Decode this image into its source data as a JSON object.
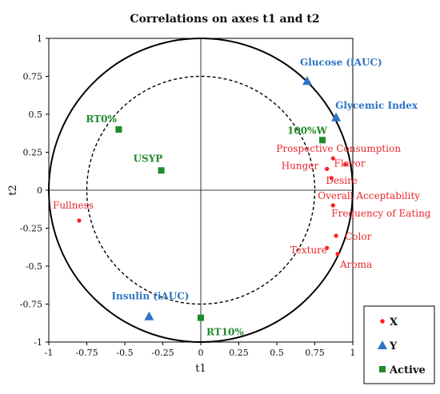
{
  "chart_data": {
    "type": "scatter",
    "title": "Correlations on axes t1 and t2",
    "xlabel": "t1",
    "ylabel": "t2",
    "xlim": [
      -1,
      1
    ],
    "ylim": [
      -1,
      1
    ],
    "xticks": [
      "-1",
      "-0.75",
      "-0.5",
      "-0.25",
      "0",
      "0.25",
      "0.5",
      "0.75",
      "1"
    ],
    "yticks": [
      "1",
      "0.75",
      "0.5",
      "0.25",
      "0",
      "-0.25",
      "-0.5",
      "-0.75",
      "-1"
    ],
    "grid": false,
    "unit_circle_radius": 1,
    "inner_circle_radius": 0.75,
    "legend_position": "bottom-right",
    "series": [
      {
        "name": "X",
        "marker": "circle",
        "color": "#ff2020",
        "points": [
          {
            "label": "Fullness",
            "x": -0.8,
            "y": -0.2
          },
          {
            "label": "Prospective Consumption",
            "x": 0.87,
            "y": 0.21
          },
          {
            "label": "Flavor",
            "x": 0.95,
            "y": 0.17
          },
          {
            "label": "Hunger",
            "x": 0.83,
            "y": 0.14
          },
          {
            "label": "Desire",
            "x": 0.86,
            "y": 0.08
          },
          {
            "label": "Overall Acceptability",
            "x": 0.87,
            "y": -0.1
          },
          {
            "label": "Frequency of Eating",
            "x": 0.87,
            "y": -0.1
          },
          {
            "label": "Color",
            "x": 0.89,
            "y": -0.3
          },
          {
            "label": "Texture",
            "x": 0.83,
            "y": -0.38
          },
          {
            "label": "Aroma",
            "x": 0.9,
            "y": -0.42
          }
        ]
      },
      {
        "name": "Y",
        "marker": "triangle",
        "color": "#2e74c4",
        "points": [
          {
            "label": "Glucose (iAUC)",
            "x": 0.7,
            "y": 0.72
          },
          {
            "label": "Glycemic Index",
            "x": 0.89,
            "y": 0.48
          },
          {
            "label": "Insulin (iAUC)",
            "x": -0.34,
            "y": -0.83
          }
        ]
      },
      {
        "name": "Active",
        "marker": "square",
        "color": "#1f8a2a",
        "points": [
          {
            "label": "RT0%",
            "x": -0.54,
            "y": 0.4
          },
          {
            "label": "USYP",
            "x": -0.26,
            "y": 0.13
          },
          {
            "label": "100%W",
            "x": 0.8,
            "y": 0.33
          },
          {
            "label": "RT10%",
            "x": 0.0,
            "y": -0.84
          }
        ]
      }
    ]
  }
}
